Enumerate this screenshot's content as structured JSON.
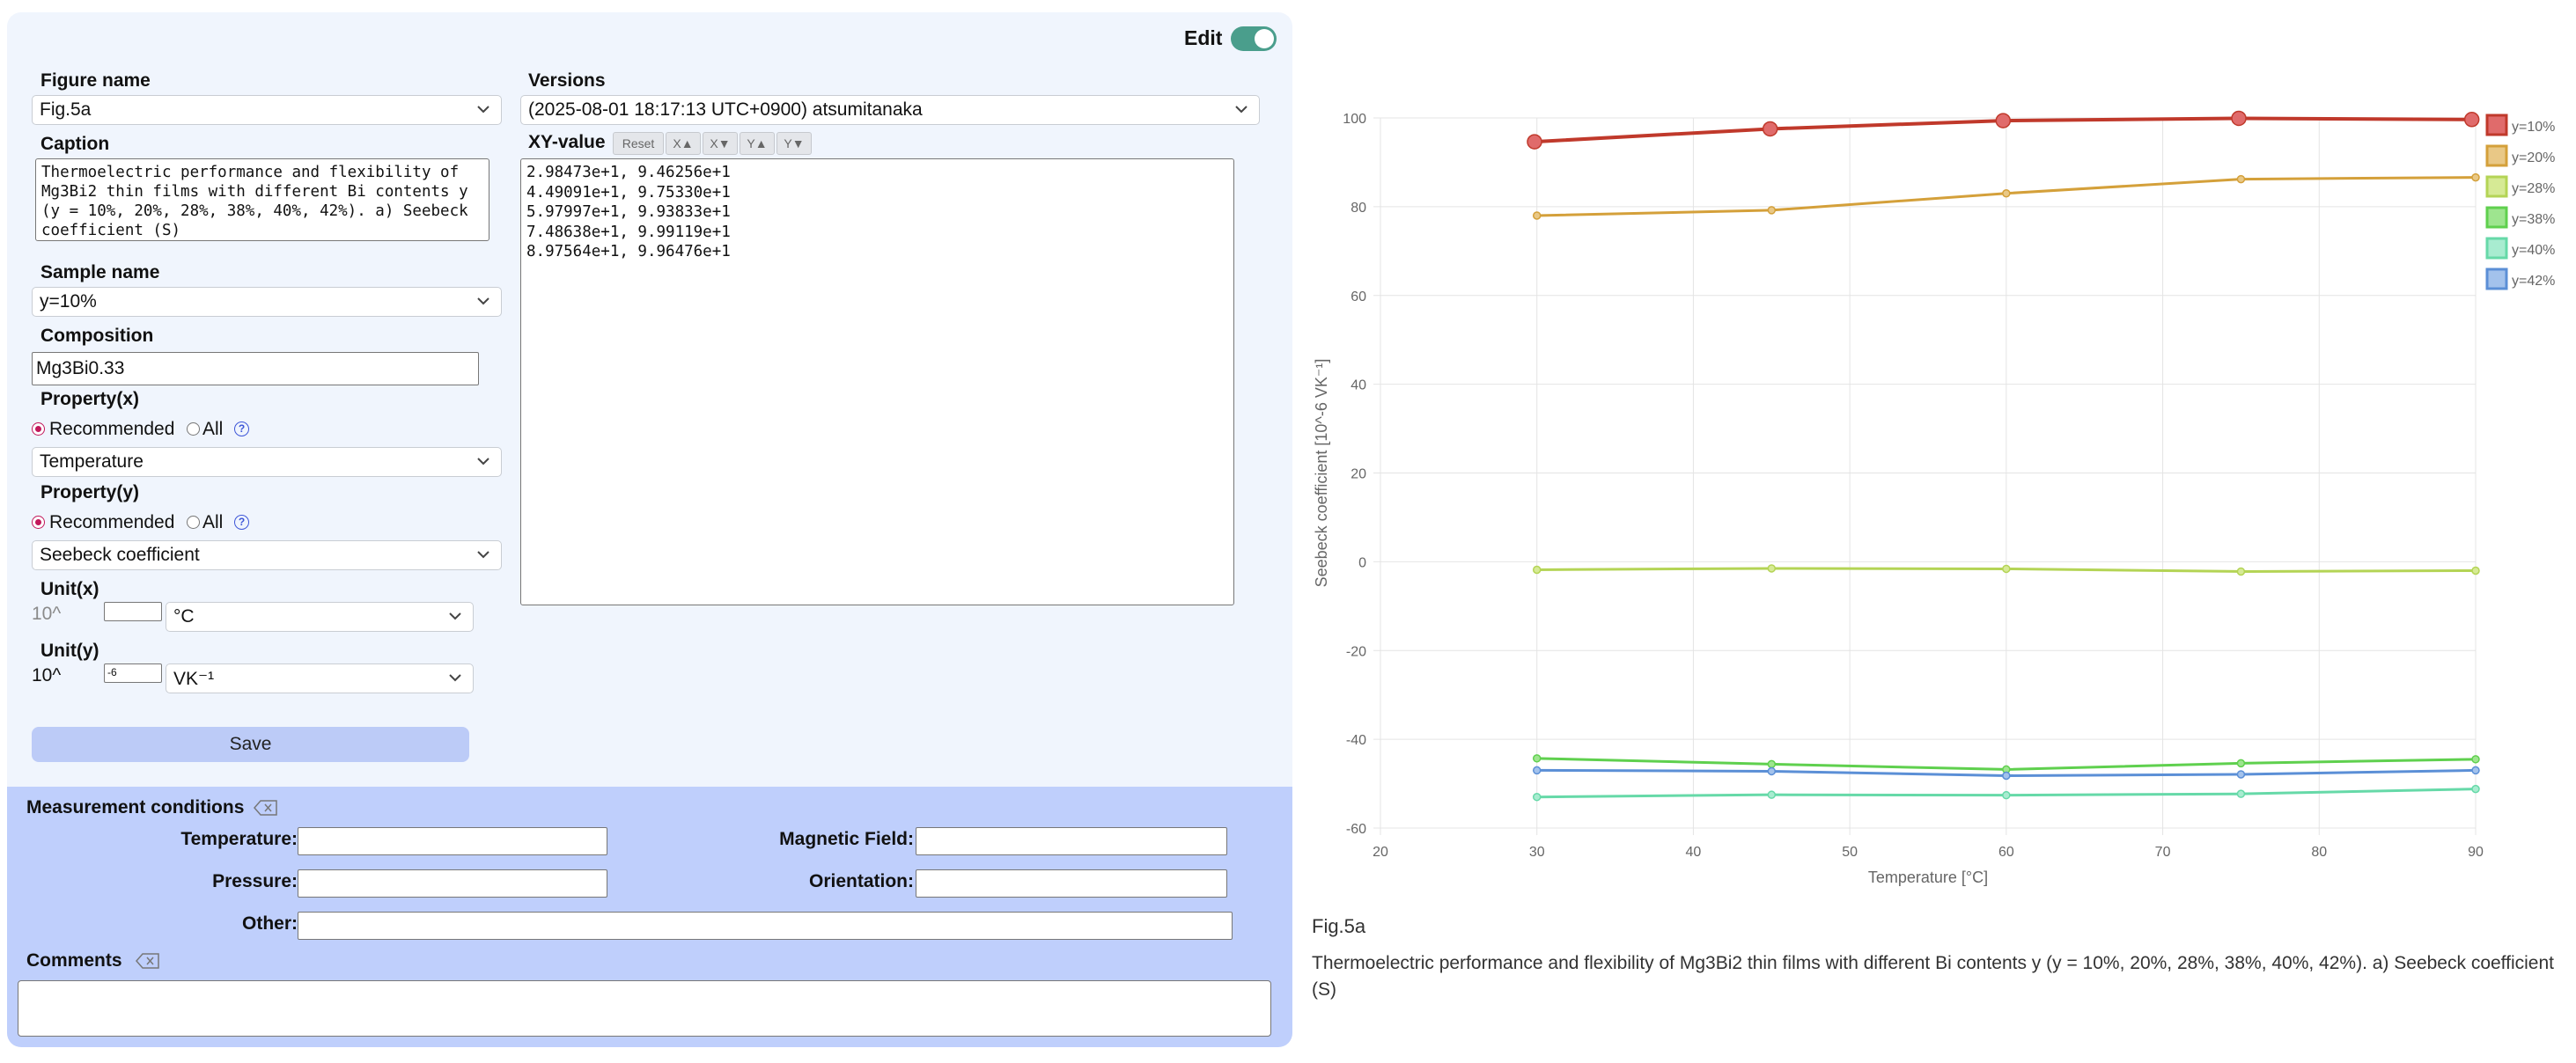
{
  "header": {
    "edit_label": "Edit",
    "edit_on": true
  },
  "form": {
    "figure_name_label": "Figure name",
    "figure_name_value": "Fig.5a",
    "caption_label": "Caption",
    "caption_value": "Thermoelectric performance and flexibility of Mg3Bi2 thin films with different Bi contents y (y = 10%, 20%, 28%, 38%, 40%, 42%). a) Seebeck coefficient (S)",
    "sample_name_label": "Sample name",
    "sample_name_value": "y=10%",
    "composition_label": "Composition",
    "composition_value": "Mg3Bi0.33",
    "property_x_label": "Property(x)",
    "property_x_value": "Temperature",
    "property_y_label": "Property(y)",
    "property_y_value": "Seebeck coefficient",
    "recommended_label": "Recommended",
    "all_label": "All",
    "help_glyph": "?",
    "unit_x_label": "Unit(x)",
    "unit_x_power": "10^",
    "unit_x_exponent": "",
    "unit_x_value": "°C",
    "unit_y_label": "Unit(y)",
    "unit_y_power": "10^",
    "unit_y_exponent": "-6",
    "unit_y_value": "VK⁻¹",
    "save_label": "Save"
  },
  "versions": {
    "label": "Versions",
    "value": "(2025-08-01 18:17:13 UTC+0900) atsumitanaka",
    "xy_label": "XY-value",
    "buttons": [
      "Reset",
      "X▲",
      "X▼",
      "Y▲",
      "Y▼"
    ],
    "xy_text": "2.98473e+1, 9.46256e+1\n4.49091e+1, 9.75330e+1\n5.97997e+1, 9.93833e+1\n7.48638e+1, 9.99119e+1\n8.97564e+1, 9.96476e+1"
  },
  "measurement": {
    "title": "Measurement conditions",
    "temperature_label": "Temperature:",
    "magnetic_field_label": "Magnetic Field:",
    "pressure_label": "Pressure:",
    "orientation_label": "Orientation:",
    "other_label": "Other:",
    "comments_label": "Comments"
  },
  "figure": {
    "name": "Fig.5a",
    "caption": "Thermoelectric performance and flexibility of Mg3Bi2 thin films with different Bi contents y (y = 10%, 20%, 28%, 38%, 40%, 42%). a) Seebeck coefficient (S)"
  },
  "chart_data": {
    "type": "line",
    "title": "",
    "xlabel": "Temperature [°C]",
    "ylabel": "Seebeck coefficient [10^-6 VK⁻¹]",
    "xlim": [
      20,
      90
    ],
    "ylim": [
      -60,
      100
    ],
    "xticks": [
      20,
      30,
      40,
      50,
      60,
      70,
      80,
      90
    ],
    "yticks": [
      -60,
      -40,
      -20,
      0,
      20,
      40,
      60,
      80,
      100
    ],
    "grid": true,
    "legend_position": "right",
    "series": [
      {
        "name": "y=10%",
        "color": "#c0392b",
        "fill": "#e06b6b",
        "highlighted": true,
        "x": [
          29.8473,
          44.9091,
          59.7997,
          74.8638,
          89.7564
        ],
        "y": [
          94.6256,
          97.533,
          99.3833,
          99.9119,
          99.6476
        ]
      },
      {
        "name": "y=20%",
        "color": "#d4a03a",
        "fill": "#e9c886",
        "highlighted": false,
        "x": [
          30,
          45,
          60,
          75,
          90
        ],
        "y": [
          78,
          79.2,
          83,
          86.2,
          86.6
        ]
      },
      {
        "name": "y=28%",
        "color": "#b4d455",
        "fill": "#d6ea95",
        "highlighted": false,
        "x": [
          30,
          45,
          60,
          75,
          90
        ],
        "y": [
          -1.8,
          -1.5,
          -1.6,
          -2.2,
          -2
        ]
      },
      {
        "name": "y=38%",
        "color": "#5fd04e",
        "fill": "#9ee58f",
        "highlighted": false,
        "x": [
          30,
          45,
          60,
          75,
          90
        ],
        "y": [
          -44.3,
          -45.6,
          -46.8,
          -45.4,
          -44.5
        ]
      },
      {
        "name": "y=40%",
        "color": "#66d9a8",
        "fill": "#a8ecd0",
        "highlighted": false,
        "x": [
          30,
          45,
          60,
          75,
          90
        ],
        "y": [
          -53,
          -52.5,
          -52.6,
          -52.3,
          -51.2
        ]
      },
      {
        "name": "y=42%",
        "color": "#5b8fd6",
        "fill": "#a3c2ec",
        "highlighted": false,
        "x": [
          30,
          45,
          60,
          75,
          90
        ],
        "y": [
          -47,
          -47.2,
          -48.2,
          -47.9,
          -47
        ]
      }
    ]
  }
}
